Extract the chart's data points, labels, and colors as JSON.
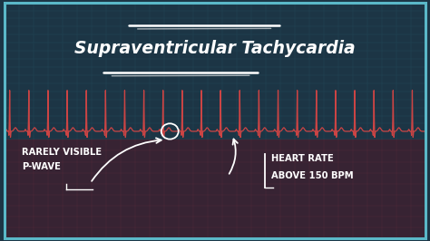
{
  "title": "Supraventricular Tachycardia",
  "bg_color": "#1c3545",
  "grid_color": "#2a5565",
  "ecg_color": "#cc4444",
  "lower_bg_color": "#3d2030",
  "border_color": "#5ab8c8",
  "text_color": "#ffffff",
  "annotation1_line1": "RARELY VISIBLE",
  "annotation1_line2": "P-WAVE",
  "annotation2_line1": "HEART RATE",
  "annotation2_line2": "ABOVE 150 BPM",
  "figsize": [
    4.74,
    2.66
  ],
  "dpi": 100
}
